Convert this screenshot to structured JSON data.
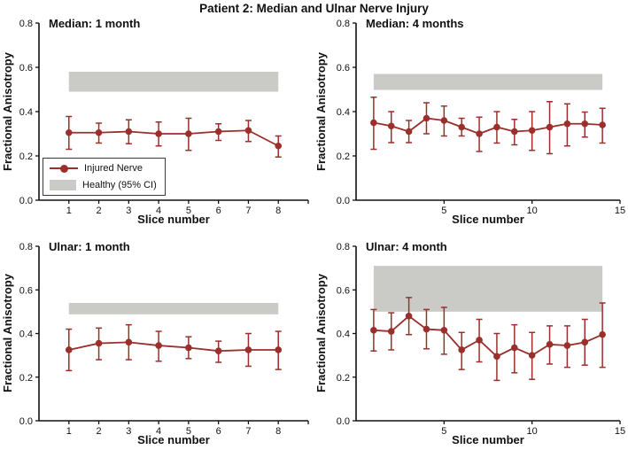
{
  "figure": {
    "title": "Patient 2: Median and Ulnar Nerve Injury",
    "background": "#ffffff"
  },
  "colors": {
    "injured_line": "#9a2f2b",
    "healthy_band": "#cacbc6",
    "axis": "#111111",
    "text": "#111111"
  },
  "legend": {
    "items": [
      {
        "type": "line-marker",
        "label": "Injured Nerve"
      },
      {
        "type": "band",
        "label": "Healthy (95% CI)"
      }
    ]
  },
  "chart_data": [
    {
      "id": "median-1-month",
      "type": "line",
      "title": "Median: 1 month",
      "xlabel": "Slice number",
      "ylabel": "Fractional Anisotropy",
      "xlim": [
        0,
        9
      ],
      "ylim": [
        0,
        0.8
      ],
      "xticks": [
        1,
        2,
        3,
        4,
        5,
        6,
        7,
        8
      ],
      "xticks_unlabeled": [
        9
      ],
      "yticks": [
        0.0,
        0.2,
        0.4,
        0.6,
        0.8
      ],
      "grid": false,
      "healthy_band": {
        "x0": 1,
        "x1": 8,
        "y0": 0.49,
        "y1": 0.58
      },
      "series": [
        {
          "name": "Injured Nerve",
          "x": [
            1,
            2,
            3,
            4,
            5,
            6,
            7,
            8
          ],
          "y": [
            0.305,
            0.305,
            0.31,
            0.3,
            0.3,
            0.31,
            0.315,
            0.245
          ],
          "err_lo": [
            0.23,
            0.258,
            0.255,
            0.245,
            0.225,
            0.27,
            0.265,
            0.195
          ],
          "err_hi": [
            0.378,
            0.348,
            0.363,
            0.353,
            0.37,
            0.345,
            0.36,
            0.29
          ]
        }
      ]
    },
    {
      "id": "median-4-months",
      "type": "line",
      "title": "Median: 4 months",
      "xlabel": "Slice number",
      "ylabel": "Fractional Anisotropy",
      "xlim": [
        0,
        15
      ],
      "ylim": [
        0,
        0.8
      ],
      "xticks": [
        5,
        10,
        15
      ],
      "xticks_unlabeled": [],
      "yticks": [
        0.0,
        0.2,
        0.4,
        0.6,
        0.8
      ],
      "grid": false,
      "healthy_band": {
        "x0": 1,
        "x1": 14,
        "y0": 0.498,
        "y1": 0.57
      },
      "series": [
        {
          "name": "Injured Nerve",
          "x": [
            1,
            2,
            3,
            4,
            5,
            6,
            7,
            8,
            9,
            10,
            11,
            12,
            13,
            14
          ],
          "y": [
            0.35,
            0.335,
            0.31,
            0.37,
            0.36,
            0.33,
            0.3,
            0.33,
            0.31,
            0.315,
            0.33,
            0.345,
            0.345,
            0.34
          ],
          "err_lo": [
            0.23,
            0.26,
            0.26,
            0.3,
            0.29,
            0.29,
            0.22,
            0.258,
            0.25,
            0.225,
            0.21,
            0.245,
            0.285,
            0.258
          ],
          "err_hi": [
            0.465,
            0.4,
            0.36,
            0.44,
            0.425,
            0.37,
            0.375,
            0.4,
            0.365,
            0.4,
            0.445,
            0.435,
            0.398,
            0.415
          ]
        }
      ]
    },
    {
      "id": "ulnar-1-month",
      "type": "line",
      "title": "Ulnar: 1 month",
      "xlabel": "Slice number",
      "ylabel": "Fractional Anisotropy",
      "xlim": [
        0,
        9
      ],
      "ylim": [
        0,
        0.8
      ],
      "xticks": [
        1,
        2,
        3,
        4,
        5,
        6,
        7,
        8
      ],
      "xticks_unlabeled": [
        9
      ],
      "yticks": [
        0.0,
        0.2,
        0.4,
        0.6,
        0.8
      ],
      "grid": false,
      "healthy_band": {
        "x0": 1,
        "x1": 8,
        "y0": 0.488,
        "y1": 0.54
      },
      "series": [
        {
          "name": "Injured Nerve",
          "x": [
            1,
            2,
            3,
            4,
            5,
            6,
            7,
            8
          ],
          "y": [
            0.325,
            0.355,
            0.36,
            0.345,
            0.335,
            0.32,
            0.325,
            0.325
          ],
          "err_lo": [
            0.23,
            0.28,
            0.28,
            0.273,
            0.285,
            0.268,
            0.25,
            0.235
          ],
          "err_hi": [
            0.42,
            0.425,
            0.44,
            0.41,
            0.385,
            0.365,
            0.4,
            0.41
          ]
        }
      ]
    },
    {
      "id": "ulnar-4-month",
      "type": "line",
      "title": "Ulnar: 4 month",
      "xlabel": "Slice number",
      "ylabel": "Fractional Anisotropy",
      "xlim": [
        0,
        15
      ],
      "ylim": [
        0,
        0.8
      ],
      "xticks": [
        5,
        10,
        15
      ],
      "xticks_unlabeled": [],
      "yticks": [
        0.0,
        0.2,
        0.4,
        0.6,
        0.8
      ],
      "grid": false,
      "healthy_band": {
        "x0": 1,
        "x1": 14,
        "y0": 0.5,
        "y1": 0.71
      },
      "series": [
        {
          "name": "Injured Nerve",
          "x": [
            1,
            2,
            3,
            4,
            5,
            6,
            7,
            8,
            9,
            10,
            11,
            12,
            13,
            14
          ],
          "y": [
            0.415,
            0.41,
            0.48,
            0.42,
            0.415,
            0.325,
            0.37,
            0.295,
            0.335,
            0.3,
            0.35,
            0.345,
            0.36,
            0.395
          ],
          "err_lo": [
            0.32,
            0.325,
            0.395,
            0.33,
            0.305,
            0.235,
            0.27,
            0.185,
            0.22,
            0.19,
            0.26,
            0.245,
            0.255,
            0.245
          ],
          "err_hi": [
            0.51,
            0.495,
            0.565,
            0.51,
            0.52,
            0.405,
            0.465,
            0.4,
            0.44,
            0.405,
            0.435,
            0.435,
            0.465,
            0.54
          ]
        }
      ]
    }
  ]
}
